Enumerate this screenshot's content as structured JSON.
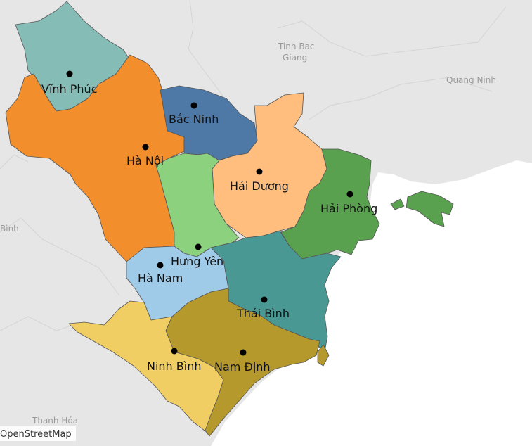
{
  "map": {
    "attribution": "OpenStreetMap",
    "basemap": {
      "land_color": "#e6e6e6",
      "water_color": "#ffffff",
      "labels": {
        "tinh_bac_giang_1": "Tinh Bac",
        "tinh_bac_giang_2": "Giang",
        "quang_ninh": "Quang Ninh",
        "ninh_binh_edge": "Bình",
        "thanh_hoa": "Thanh Hóa"
      }
    },
    "provinces": [
      {
        "key": "vinh_phuc",
        "name": "Vĩnh Phúc",
        "color": "#86bcb6"
      },
      {
        "key": "ha_noi",
        "name": "Hà Nội",
        "color": "#f28e2b"
      },
      {
        "key": "bac_ninh",
        "name": "Bắc Ninh",
        "color": "#4e79a7"
      },
      {
        "key": "hai_duong",
        "name": "Hải Dương",
        "color": "#ffbe7d"
      },
      {
        "key": "hai_phong",
        "name": "Hải Phòng",
        "color": "#59a14f"
      },
      {
        "key": "hung_yen",
        "name": "Hưng Yên",
        "color": "#8cd17d"
      },
      {
        "key": "ha_nam",
        "name": "Hà Nam",
        "color": "#a0cbe8"
      },
      {
        "key": "thai_binh",
        "name": "Thái Bình",
        "color": "#499894"
      },
      {
        "key": "ninh_binh",
        "name": "Ninh Bình",
        "color": "#f1ce63"
      },
      {
        "key": "nam_dinh",
        "name": "Nam Định",
        "color": "#b6992d"
      }
    ]
  }
}
